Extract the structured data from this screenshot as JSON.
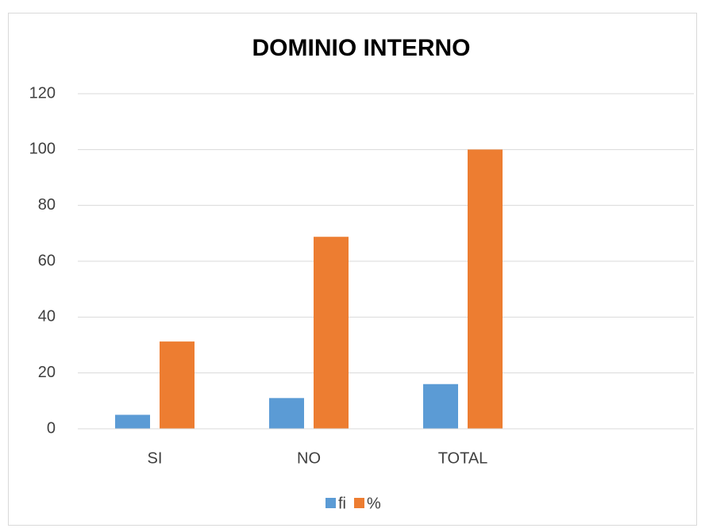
{
  "chart_data": {
    "type": "bar",
    "title": "DOMINIO INTERNO",
    "categories": [
      "SI",
      "NO",
      "TOTAL",
      null
    ],
    "series": [
      {
        "name": "fi",
        "color": "#5b9bd5",
        "values": [
          5,
          11,
          16,
          null
        ]
      },
      {
        "name": "%",
        "color": "#ed7d31",
        "values": [
          31.25,
          68.75,
          100,
          null
        ]
      }
    ],
    "ylim": [
      0,
      120
    ],
    "yticks": [
      0,
      20,
      40,
      60,
      80,
      100,
      120
    ],
    "grid": true,
    "legend": "bottom"
  }
}
